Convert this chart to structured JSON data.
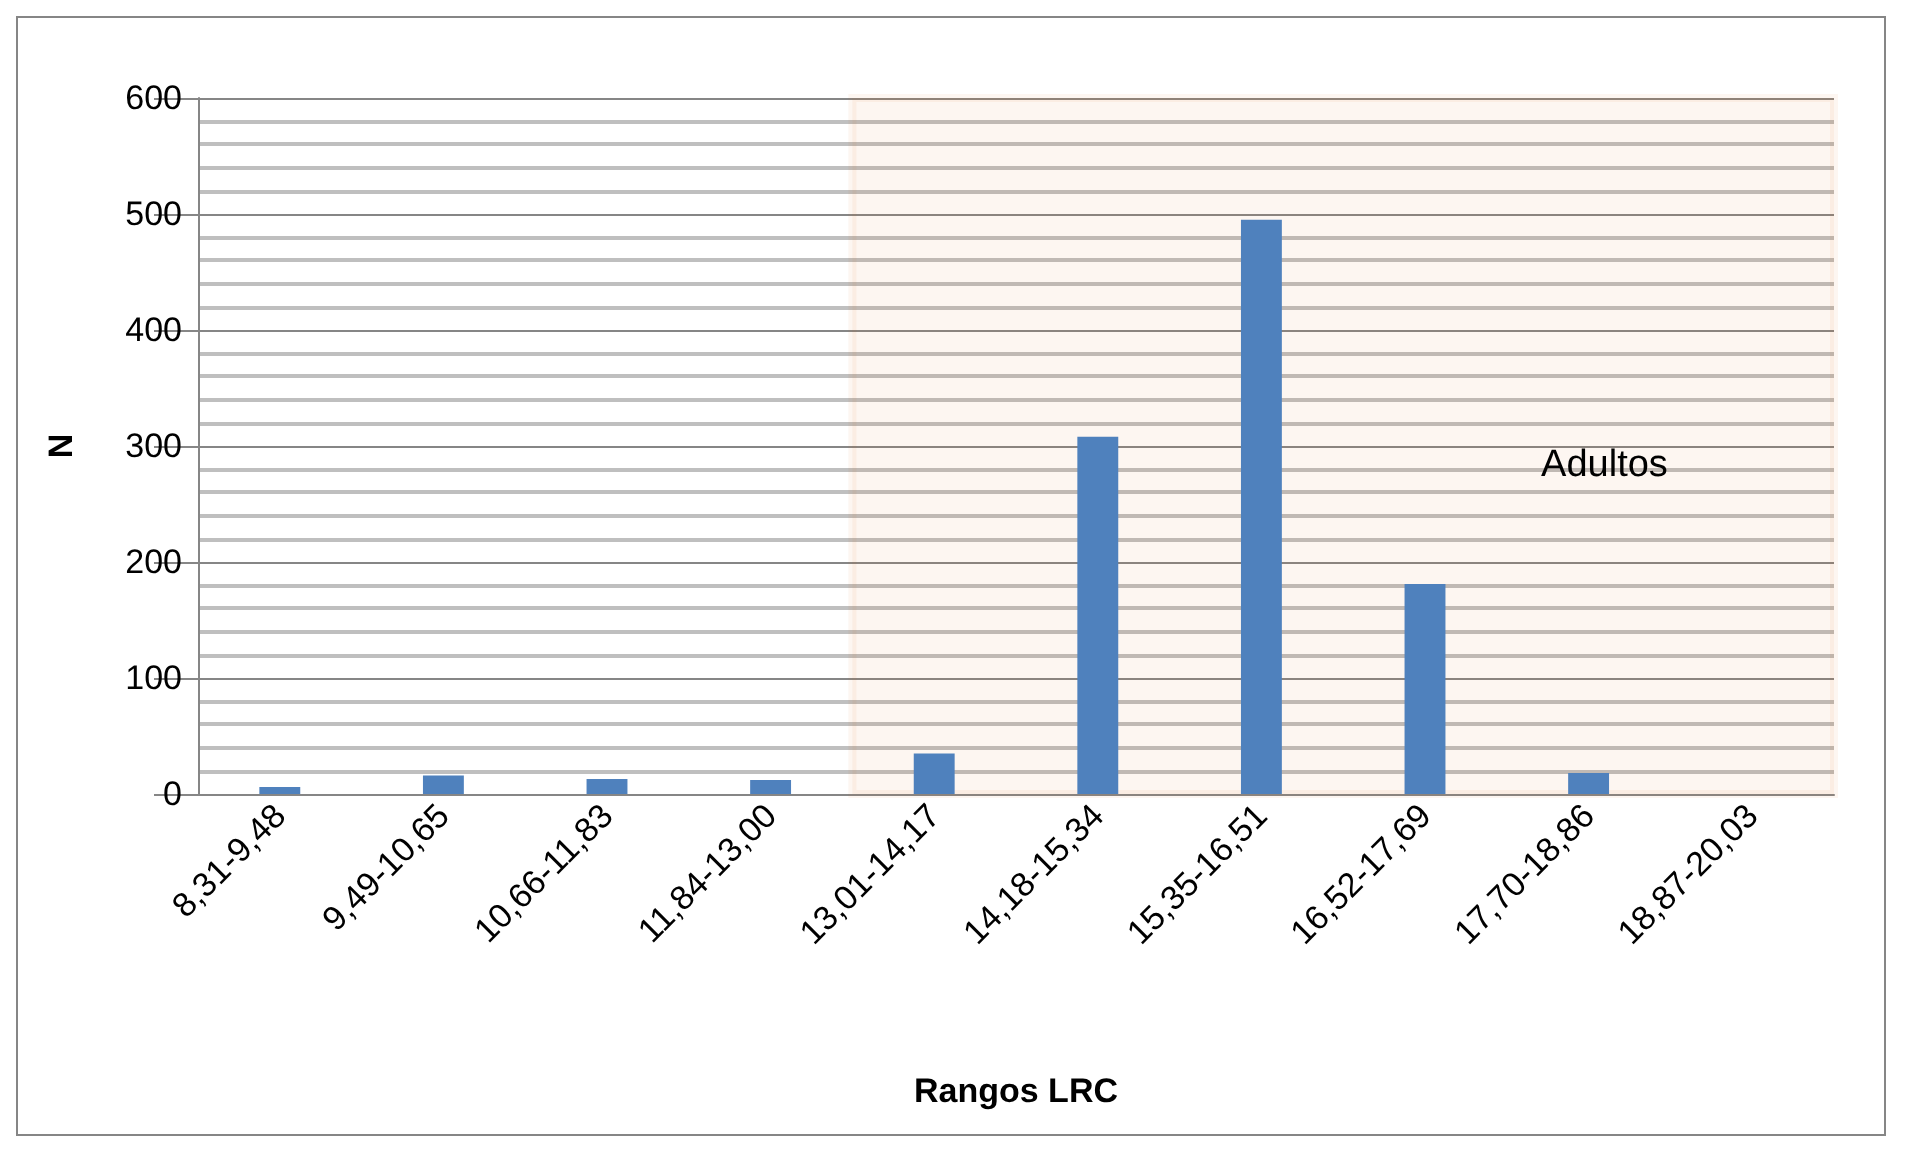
{
  "chart_data": {
    "type": "bar",
    "xlabel": "Rangos LRC",
    "ylabel": "N",
    "categories": [
      "8,31-9,48",
      "9,49-10,65",
      "10,66-11,83",
      "11,84-13,00",
      "13,01-14,17",
      "14,18-15,34",
      "15,35-16,51",
      "16,52-17,69",
      "17,70-18,86",
      "18,87-20,03"
    ],
    "values": [
      6,
      16,
      13,
      12,
      35,
      308,
      495,
      181,
      18,
      0
    ],
    "color": "#4f81bd",
    "ylim": [
      0,
      600
    ],
    "yticks": [
      0,
      100,
      200,
      300,
      400,
      500,
      600
    ],
    "grid": true,
    "bands": [
      {
        "axis": "x",
        "from": "13,01-14,17",
        "to": "18,87-20,03",
        "label": "Adultos",
        "color": "#e36c0a"
      }
    ]
  }
}
